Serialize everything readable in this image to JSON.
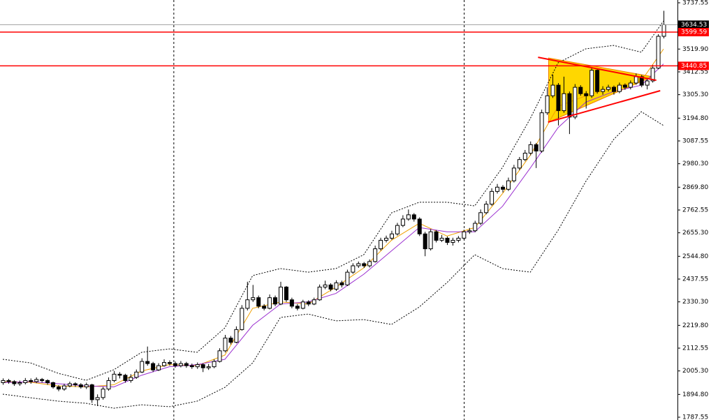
{
  "chart_data": {
    "type": "candlestick",
    "candles": {
      "open": [
        1950,
        1960,
        1955,
        1945,
        1950,
        1960,
        1955,
        1965,
        1960,
        1950,
        1930,
        1920,
        1935,
        1945,
        1940,
        1930,
        1940,
        1870,
        1880,
        1920,
        1960,
        1990,
        1985,
        1960,
        1975,
        2000,
        2050,
        2040,
        2010,
        2030,
        2045,
        2040,
        2030,
        2040,
        2030,
        2025,
        2035,
        2020,
        2025,
        2050,
        2100,
        2160,
        2140,
        2200,
        2300,
        2340,
        2350,
        2310,
        2300,
        2350,
        2320,
        2400,
        2340,
        2310,
        2300,
        2330,
        2320,
        2340,
        2400,
        2410,
        2390,
        2420,
        2410,
        2470,
        2500,
        2510,
        2500,
        2520,
        2580,
        2620,
        2630,
        2650,
        2690,
        2720,
        2740,
        2720,
        2650,
        2580,
        2660,
        2620,
        2630,
        2610,
        2620,
        2630,
        2660,
        2665,
        2700,
        2750,
        2790,
        2850,
        2870,
        2860,
        2900,
        2960,
        3000,
        3030,
        3070,
        3040,
        3220,
        3300,
        3350,
        3230,
        3310,
        3200,
        3340,
        3310,
        3300,
        3420,
        3320,
        3330,
        3340,
        3320,
        3350,
        3340,
        3360,
        3390,
        3350,
        3370,
        3430,
        3580
      ],
      "high": [
        1970,
        1968,
        1962,
        1960,
        1972,
        1970,
        1975,
        1972,
        1966,
        1955,
        1938,
        1945,
        1955,
        1952,
        1948,
        1950,
        1945,
        1895,
        1930,
        1975,
        2005,
        2000,
        1992,
        1990,
        2012,
        2065,
        2120,
        2048,
        2042,
        2060,
        2055,
        2050,
        2052,
        2048,
        2040,
        2045,
        2042,
        2038,
        2060,
        2112,
        2175,
        2170,
        2215,
        2315,
        2425,
        2410,
        2360,
        2320,
        2365,
        2360,
        2425,
        2405,
        2350,
        2320,
        2340,
        2338,
        2350,
        2412,
        2430,
        2418,
        2432,
        2430,
        2482,
        2512,
        2520,
        2518,
        2530,
        2595,
        2632,
        2642,
        2665,
        2702,
        2738,
        2765,
        2748,
        2728,
        2660,
        2672,
        2668,
        2645,
        2638,
        2632,
        2640,
        2670,
        2678,
        2712,
        2765,
        2805,
        2865,
        2885,
        2880,
        2915,
        2975,
        3012,
        3045,
        3085,
        3078,
        3235,
        3340,
        3400,
        3360,
        3390,
        3320,
        3355,
        3350,
        3322,
        3435,
        3428,
        3345,
        3352,
        3348,
        3362,
        3358,
        3372,
        3405,
        3398,
        3385,
        3445,
        3590,
        3700
      ],
      "low": [
        1940,
        1945,
        1935,
        1935,
        1942,
        1945,
        1948,
        1950,
        1940,
        1922,
        1910,
        1912,
        1928,
        1930,
        1922,
        1920,
        1855,
        1840,
        1870,
        1912,
        1952,
        1970,
        1950,
        1950,
        1968,
        1995,
        2030,
        2000,
        2005,
        2025,
        2030,
        2020,
        2022,
        2020,
        2015,
        2015,
        2000,
        2010,
        2018,
        2045,
        2092,
        2130,
        2135,
        2195,
        2290,
        2330,
        2300,
        2290,
        2295,
        2310,
        2315,
        2330,
        2300,
        2290,
        2295,
        2310,
        2315,
        2335,
        2390,
        2380,
        2382,
        2398,
        2405,
        2462,
        2490,
        2490,
        2492,
        2515,
        2572,
        2610,
        2622,
        2642,
        2682,
        2712,
        2708,
        2640,
        2545,
        2572,
        2610,
        2612,
        2598,
        2595,
        2610,
        2622,
        2650,
        2658,
        2692,
        2742,
        2782,
        2840,
        2845,
        2852,
        2892,
        2950,
        2992,
        3020,
        2960,
        3032,
        3210,
        3290,
        3160,
        3220,
        3120,
        3190,
        3300,
        3240,
        3290,
        3310,
        3305,
        3320,
        3305,
        3312,
        3328,
        3330,
        3352,
        3340,
        3330,
        3362,
        3425,
        3570
      ],
      "close": [
        1960,
        1955,
        1945,
        1950,
        1960,
        1955,
        1965,
        1960,
        1950,
        1930,
        1920,
        1935,
        1945,
        1940,
        1930,
        1940,
        1870,
        1880,
        1920,
        1960,
        1990,
        1985,
        1960,
        1975,
        2000,
        2050,
        2040,
        2010,
        2030,
        2045,
        2040,
        2030,
        2040,
        2030,
        2025,
        2035,
        2020,
        2025,
        2050,
        2100,
        2160,
        2140,
        2200,
        2300,
        2340,
        2350,
        2310,
        2300,
        2350,
        2320,
        2400,
        2340,
        2310,
        2300,
        2330,
        2320,
        2340,
        2400,
        2410,
        2390,
        2420,
        2410,
        2470,
        2500,
        2510,
        2500,
        2520,
        2580,
        2620,
        2630,
        2650,
        2690,
        2720,
        2740,
        2720,
        2650,
        2580,
        2660,
        2620,
        2630,
        2610,
        2620,
        2630,
        2660,
        2665,
        2700,
        2750,
        2790,
        2850,
        2870,
        2860,
        2900,
        2960,
        3000,
        3030,
        3070,
        3040,
        3220,
        3300,
        3350,
        3230,
        3310,
        3200,
        3340,
        3310,
        3300,
        3420,
        3320,
        3330,
        3340,
        3320,
        3350,
        3340,
        3360,
        3390,
        3350,
        3370,
        3430,
        3580,
        3634.53
      ],
      "up_color": "#ffffff",
      "down_color": "#000000",
      "edge_color": "#000000"
    },
    "lines": [
      {
        "color": "#000000",
        "dash": true,
        "x": [
          0,
          5,
          10,
          15,
          20,
          25,
          30,
          35,
          40,
          45,
          50,
          55,
          60,
          65,
          70,
          75,
          80,
          85,
          90,
          95,
          100,
          105,
          110,
          115,
          119
        ],
        "values": [
          2060,
          2043,
          1994,
          1961,
          2011,
          2093,
          2109,
          2093,
          2208,
          2454,
          2487,
          2470,
          2487,
          2552,
          2749,
          2799,
          2799,
          2782,
          2963,
          3193,
          3455,
          3521,
          3537,
          3505,
          3652
        ]
      },
      {
        "color": "#000000",
        "dash": true,
        "x": [
          0,
          5,
          10,
          15,
          20,
          25,
          30,
          35,
          40,
          45,
          50,
          55,
          60,
          65,
          70,
          75,
          80,
          85,
          90,
          95,
          100,
          105,
          110,
          115,
          119
        ],
        "values": [
          1896,
          1879,
          1863,
          1853,
          1830,
          1846,
          1837,
          1863,
          1928,
          2043,
          2257,
          2273,
          2241,
          2247,
          2224,
          2306,
          2421,
          2552,
          2487,
          2470,
          2667,
          2897,
          3094,
          3225,
          3160
        ]
      },
      {
        "color": "#f0a000",
        "dash": false,
        "x": [
          0,
          5,
          10,
          15,
          20,
          25,
          30,
          35,
          40,
          45,
          50,
          55,
          60,
          65,
          70,
          75,
          80,
          85,
          90,
          95,
          100,
          105,
          110,
          115,
          119
        ],
        "values": [
          1955,
          1952,
          1935,
          1930,
          1940,
          2005,
          2035,
          2030,
          2080,
          2300,
          2330,
          2320,
          2400,
          2490,
          2620,
          2700,
          2640,
          2680,
          2840,
          3020,
          3250,
          3300,
          3340,
          3370,
          3520
        ]
      },
      {
        "color": "#9b30d0",
        "dash": false,
        "x": [
          0,
          5,
          10,
          15,
          20,
          25,
          30,
          35,
          40,
          45,
          50,
          55,
          60,
          65,
          70,
          75,
          80,
          85,
          90,
          95,
          100,
          105,
          110,
          115,
          119
        ],
        "values": [
          1950,
          1955,
          1945,
          1935,
          1930,
          1985,
          2025,
          2035,
          2060,
          2220,
          2320,
          2330,
          2370,
          2460,
          2570,
          2680,
          2660,
          2660,
          2780,
          2960,
          3150,
          3270,
          3320,
          3350,
          3450
        ]
      }
    ],
    "pattern": {
      "fill_color": "#ffd700",
      "fill": {
        "x": [
          98.3,
          98.3,
          117
        ],
        "values": [
          3478,
          3176,
          3390
        ]
      },
      "trendlines": [
        {
          "color": "#ff0000",
          "x": [
            96.4,
            117.7
          ],
          "values": [
            3481,
            3373
          ]
        },
        {
          "color": "#ff0000",
          "x": [
            98.2,
            118.4
          ],
          "values": [
            3176,
            3324
          ]
        }
      ]
    },
    "separators": [
      30.8,
      83.1
    ],
    "price_lines": [
      {
        "value": 3634.53,
        "color": "#000000",
        "line_color": "#a0a0a0"
      },
      {
        "value": 3599.59,
        "color": "#ff0000",
        "line_color": "#ff0000"
      },
      {
        "value": 3440.85,
        "color": "#ff0000",
        "line_color": "#ff0000"
      }
    ],
    "ylim": [
      1774.4,
      3750.7
    ],
    "yticks": [
      {
        "value": 3737.55,
        "label": "3737.55"
      },
      {
        "value": 3519.9,
        "label": "3519.90"
      },
      {
        "value": 3412.55,
        "label": "3412.55"
      },
      {
        "value": 3305.3,
        "label": "3305.30"
      },
      {
        "value": 3194.8,
        "label": "3194.80"
      },
      {
        "value": 3087.55,
        "label": "3087.55"
      },
      {
        "value": 2980.3,
        "label": "2980.30"
      },
      {
        "value": 2869.8,
        "label": "2869.80"
      },
      {
        "value": 2762.55,
        "label": "2762.55"
      },
      {
        "value": 2655.3,
        "label": "2655.30"
      },
      {
        "value": 2544.8,
        "label": "2544.80"
      },
      {
        "value": 2437.55,
        "label": "2437.55"
      },
      {
        "value": 2330.3,
        "label": "2330.30"
      },
      {
        "value": 2219.8,
        "label": "2219.80"
      },
      {
        "value": 2112.55,
        "label": "2112.55"
      },
      {
        "value": 2005.3,
        "label": "2005.30"
      },
      {
        "value": 1894.8,
        "label": "1894.80"
      },
      {
        "value": 1787.55,
        "label": "1787.55"
      }
    ]
  }
}
